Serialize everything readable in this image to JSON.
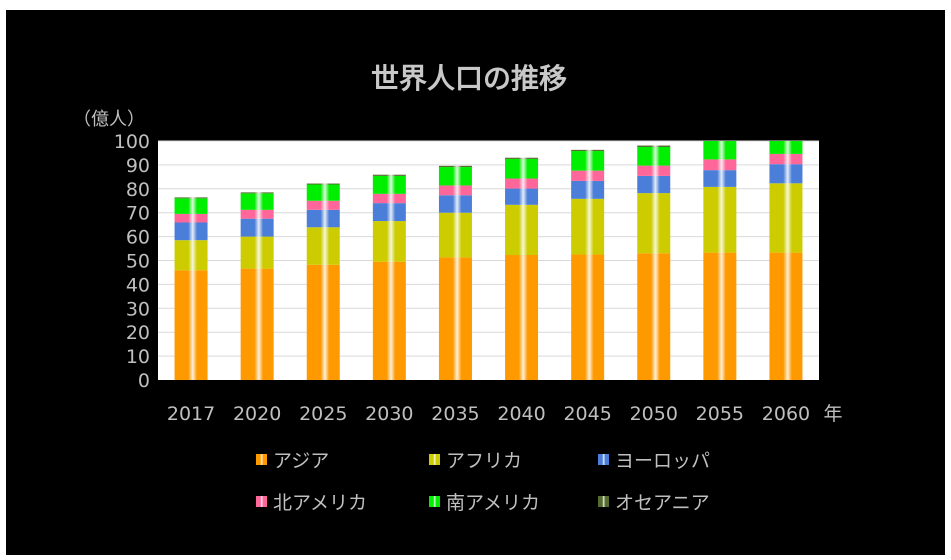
{
  "chart_data": {
    "type": "bar",
    "stacked": true,
    "title": "世界人口の推移",
    "ylabel": "（億人）",
    "xlabel": "年",
    "ylim": [
      0,
      100
    ],
    "yticks": [
      0,
      10,
      20,
      30,
      40,
      50,
      60,
      70,
      80,
      90,
      100
    ],
    "categories": [
      "2017",
      "2020",
      "2025",
      "2030",
      "2035",
      "2040",
      "2045",
      "2050",
      "2055",
      "2060"
    ],
    "grid": true,
    "legend_position": "bottom",
    "series": [
      {
        "name": "アジア",
        "color": "#ff9900",
        "values": [
          45.9,
          46.6,
          48.2,
          49.5,
          51.3,
          52.3,
          52.5,
          53.0,
          53.3,
          53.3
        ]
      },
      {
        "name": "アフリカ",
        "color": "#cccc00",
        "values": [
          12.6,
          13.4,
          15.7,
          17.0,
          18.7,
          21.0,
          23.3,
          25.2,
          27.5,
          29.0
        ]
      },
      {
        "name": "ヨーロッパ",
        "color": "#4a7ed8",
        "values": [
          7.4,
          7.5,
          7.3,
          7.5,
          7.3,
          6.8,
          7.5,
          7.2,
          7.0,
          8.0
        ]
      },
      {
        "name": "北アメリカ",
        "color": "#ff6699",
        "values": [
          3.6,
          3.7,
          3.8,
          3.9,
          4.1,
          4.2,
          4.3,
          4.3,
          4.5,
          4.3
        ]
      },
      {
        "name": "南アメリカ",
        "color": "#00ee00",
        "values": [
          6.5,
          6.9,
          6.8,
          7.5,
          7.7,
          8.2,
          8.2,
          7.8,
          8.1,
          7.9
        ]
      },
      {
        "name": "オセアニア",
        "color": "#556b2f",
        "values": [
          0.4,
          0.4,
          0.4,
          0.5,
          0.5,
          0.5,
          0.5,
          0.6,
          0.6,
          0.6
        ]
      }
    ]
  }
}
